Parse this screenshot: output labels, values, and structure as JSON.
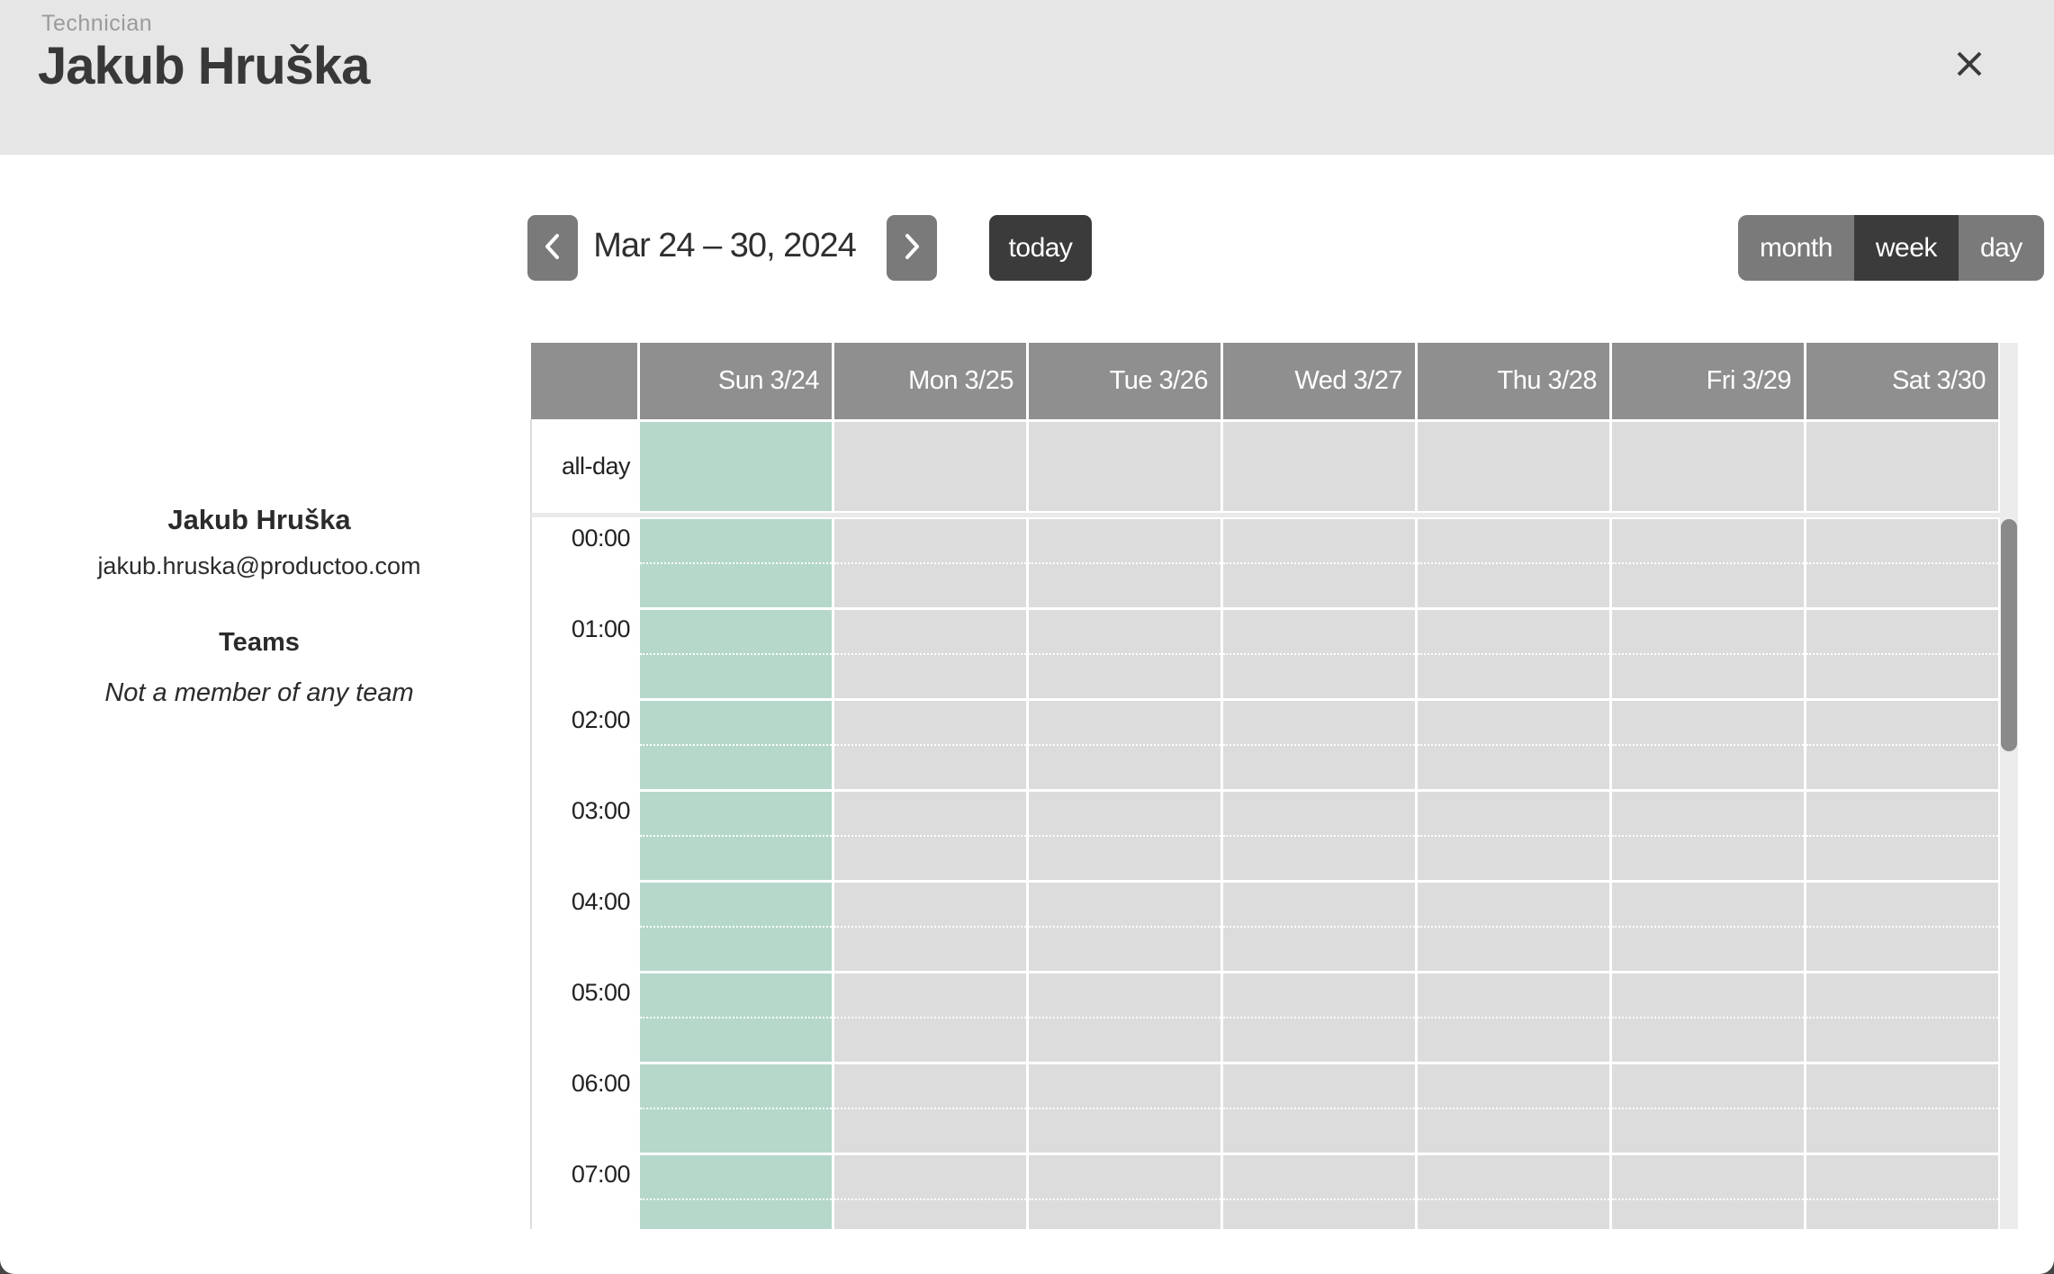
{
  "colors": {
    "banner_bg": "#e6e6e6",
    "banner_label": "#9b9b9b",
    "ink": "#383838",
    "btn_bg": "#7a7a7a",
    "btn_active_bg": "#3b3b3b",
    "header_bg": "#8f8f8f",
    "day_bg": "#dcdcdc",
    "highlight_bg": "#b5d8cb",
    "divider": "#e9e9e9",
    "track": "#ececec",
    "thumb": "#8a8a8a",
    "page_behind": "#454545"
  },
  "banner": {
    "label": "Technician",
    "title": "Jakub Hruška",
    "close_icon": "close-icon"
  },
  "toolbar": {
    "prev_icon": "chevron-left-icon",
    "next_icon": "chevron-right-icon",
    "date_range": "Mar 24 – 30, 2024",
    "today_label": "today",
    "views": [
      {
        "id": "month",
        "label": "month",
        "active": false
      },
      {
        "id": "week",
        "label": "week",
        "active": true
      },
      {
        "id": "day",
        "label": "day",
        "active": false
      }
    ]
  },
  "profile": {
    "name": "Jakub Hruška",
    "email": "jakub.hruska@productoo.com",
    "teams_heading": "Teams",
    "teams_empty": "Not a member of any team"
  },
  "calendar": {
    "all_day_label": "all-day",
    "days": [
      {
        "label": "Sun 3/24",
        "highlight": true
      },
      {
        "label": "Mon 3/25",
        "highlight": false
      },
      {
        "label": "Tue 3/26",
        "highlight": false
      },
      {
        "label": "Wed 3/27",
        "highlight": false
      },
      {
        "label": "Thu 3/28",
        "highlight": false
      },
      {
        "label": "Fri 3/29",
        "highlight": false
      },
      {
        "label": "Sat 3/30",
        "highlight": false
      }
    ],
    "hours": [
      "00:00",
      "01:00",
      "02:00",
      "03:00",
      "04:00",
      "05:00",
      "06:00",
      "07:00"
    ]
  }
}
